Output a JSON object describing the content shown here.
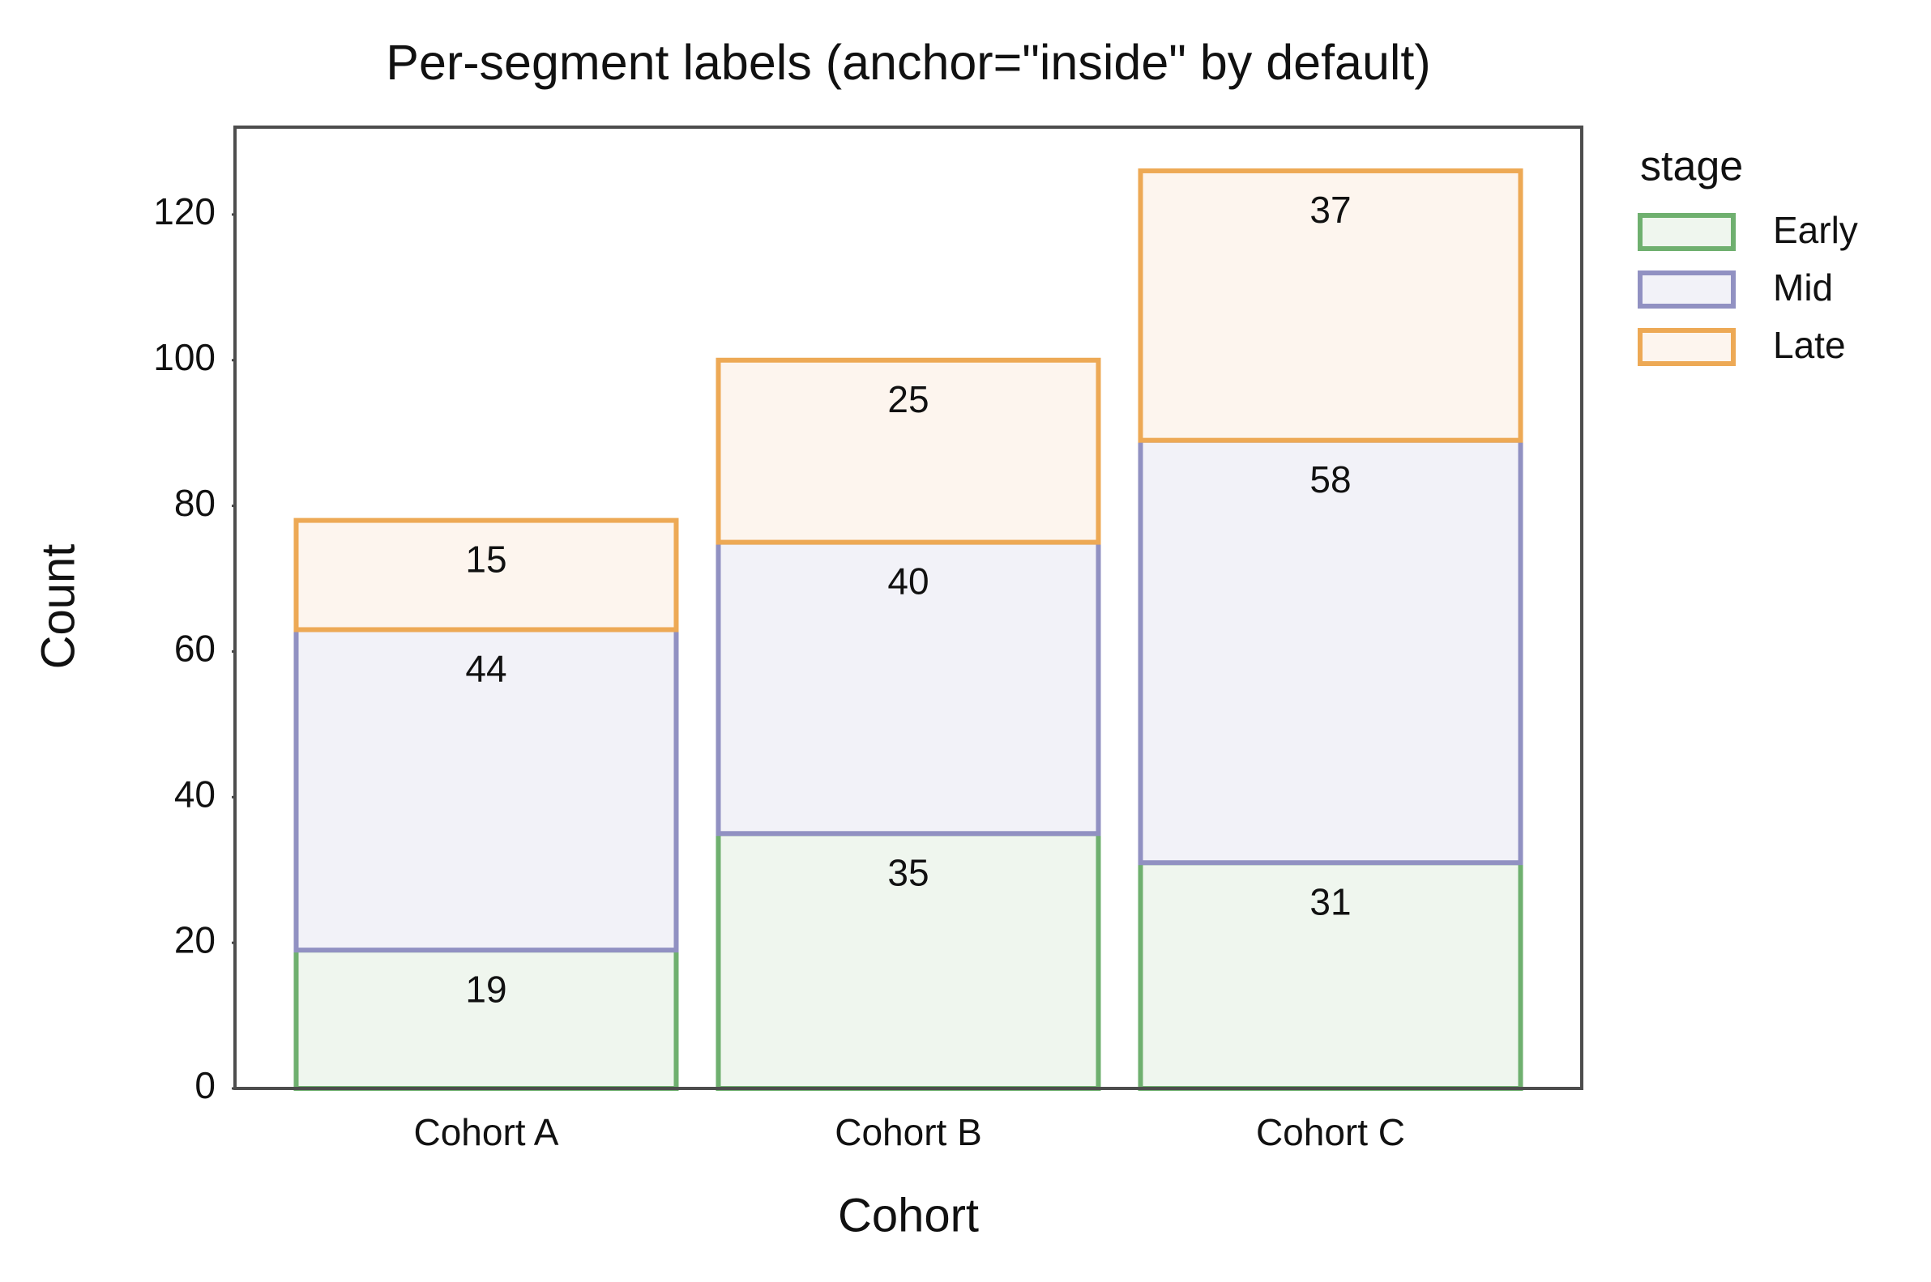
{
  "chart_data": {
    "type": "stacked_bar",
    "title": "Per-segment labels (anchor=\"inside\" by default)",
    "x_label": "Cohort",
    "y_label": "Count",
    "categories": [
      "Cohort A",
      "Cohort B",
      "Cohort C"
    ],
    "series": [
      {
        "name": "Early",
        "color": "#6fb06f",
        "fill": "#eff6ee",
        "values": [
          19,
          35,
          31
        ]
      },
      {
        "name": "Mid",
        "color": "#9191c2",
        "fill": "#f2f2f8",
        "values": [
          44,
          40,
          58
        ]
      },
      {
        "name": "Late",
        "color": "#eda955",
        "fill": "#fdf5ee",
        "values": [
          15,
          25,
          37
        ]
      }
    ],
    "legend_title": "stage",
    "ylim": [
      0,
      132
    ],
    "yticks": [
      0,
      20,
      40,
      60,
      80,
      100,
      120
    ],
    "grid": false,
    "legend": "outside right"
  }
}
